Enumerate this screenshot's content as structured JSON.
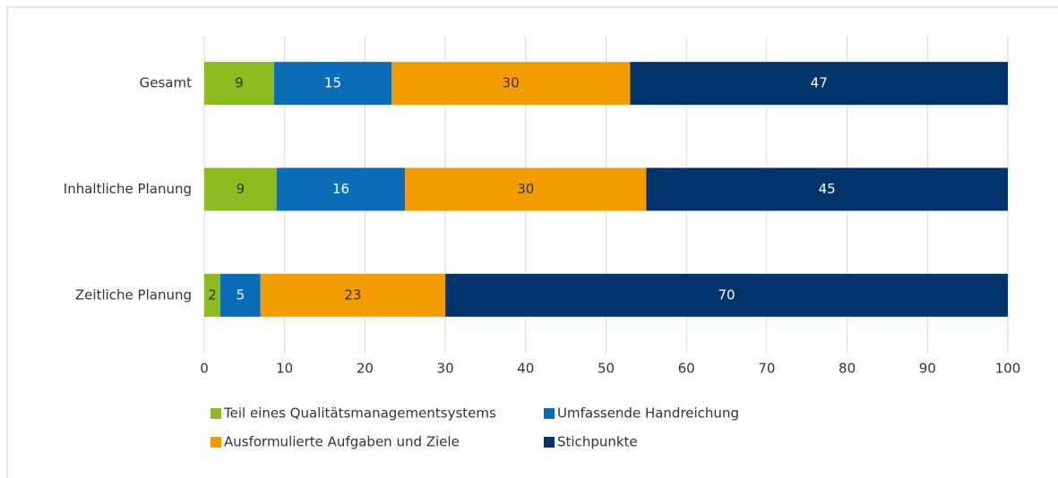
{
  "chart_data": {
    "type": "stacked_barh",
    "categories": [
      "Gesamt",
      "Inhaltliche Planung",
      "Zeitliche Planung"
    ],
    "series": [
      {
        "name": "Teil eines Qualitätsmanagementsystems",
        "color": "#8cbb21",
        "values": [
          8.7,
          9,
          2
        ],
        "value_labels": [
          "9",
          "9",
          "2"
        ]
      },
      {
        "name": "Umfassende Handreichung",
        "color": "#0b6db5",
        "values": [
          14.6,
          16,
          5
        ],
        "value_labels": [
          "15",
          "16",
          "5"
        ]
      },
      {
        "name": "Ausformulierte Aufgaben und Ziele",
        "color": "#f39c00",
        "values": [
          29.7,
          30,
          23
        ],
        "value_labels": [
          "30",
          "30",
          "23"
        ]
      },
      {
        "name": "Stichpunkte",
        "color": "#00346b",
        "values": [
          47,
          45,
          70
        ],
        "value_labels": [
          "47",
          "45",
          "70"
        ]
      }
    ],
    "xlim": [
      0,
      100
    ],
    "xticks": [
      0,
      10,
      20,
      30,
      40,
      50,
      60,
      70,
      80,
      90,
      100
    ],
    "grid": true
  }
}
